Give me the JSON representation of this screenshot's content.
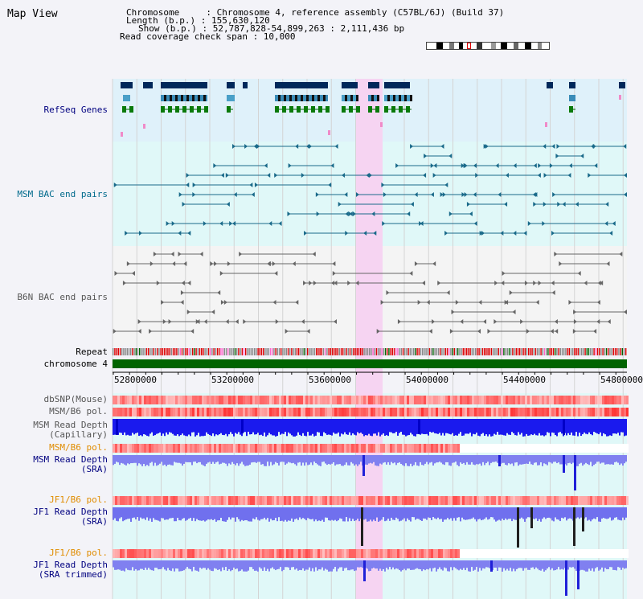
{
  "app": {
    "title": "Map View"
  },
  "info": {
    "chromosome_line": "Chromosome     : Chromosome 4, reference assembly (C57BL/6J) (Build 37)",
    "length_line": "Length (b.p.) : 155,630,120",
    "show_line": "Show (b.p.) : 52,787,828-54,899,263 : 2,111,436 bp",
    "coverage_line": "Read coverage check span : 10,000"
  },
  "tracks": {
    "refseq": "RefSeq Genes",
    "msm_bac": "MSM BAC end pairs",
    "b6n_bac": "B6N BAC end pairs",
    "repeat": "Repeat",
    "chromosome": "chromosome 4",
    "dbsnp": "dbSNP(Mouse)",
    "msm_b6_pol_1": "MSM/B6 pol.",
    "msm_depth_cap_1": "MSM Read Depth",
    "msm_depth_cap_2": "(Capillary)",
    "msm_b6_pol_2": "MSM/B6 pol.",
    "msm_depth_sra_1": "MSM Read Depth",
    "msm_depth_sra_2": "(SRA)",
    "jf1_b6_pol_1": "JF1/B6 pol.",
    "jf1_depth_sra_1": "JF1 Read Depth",
    "jf1_depth_sra_2": "(SRA)",
    "jf1_b6_pol_2": "JF1/B6 pol.",
    "jf1_depth_trim_1": "JF1 Read Depth",
    "jf1_depth_trim_2": "(SRA trimmed)"
  },
  "axis": {
    "ticks": [
      "52800000",
      "53200000",
      "53600000",
      "54000000",
      "54400000",
      "54800000"
    ]
  },
  "colors": {
    "refseq_bg": "#dff1fa",
    "msm_bg": "#e0f8f8",
    "b6n_bg": "#f4f4f4",
    "highlight": "#f6d4f2",
    "label_navy": "#000080",
    "label_teal": "#006a8c",
    "label_gray": "#555555",
    "label_orange": "#e08c00",
    "chromosome_green": "#006400"
  }
}
